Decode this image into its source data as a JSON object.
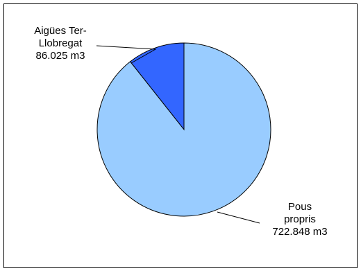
{
  "chart_data": {
    "type": "pie",
    "title": "",
    "legend": "none",
    "slices": [
      {
        "label_lines": [
          "Aigües Ter-",
          "Llobregat",
          "86.025 m3"
        ],
        "value": 86025,
        "color": "#3366ff"
      },
      {
        "label_lines": [
          "Pous",
          "propris",
          "722.848 m3"
        ],
        "value": 722848,
        "color": "#99ccff"
      }
    ]
  }
}
